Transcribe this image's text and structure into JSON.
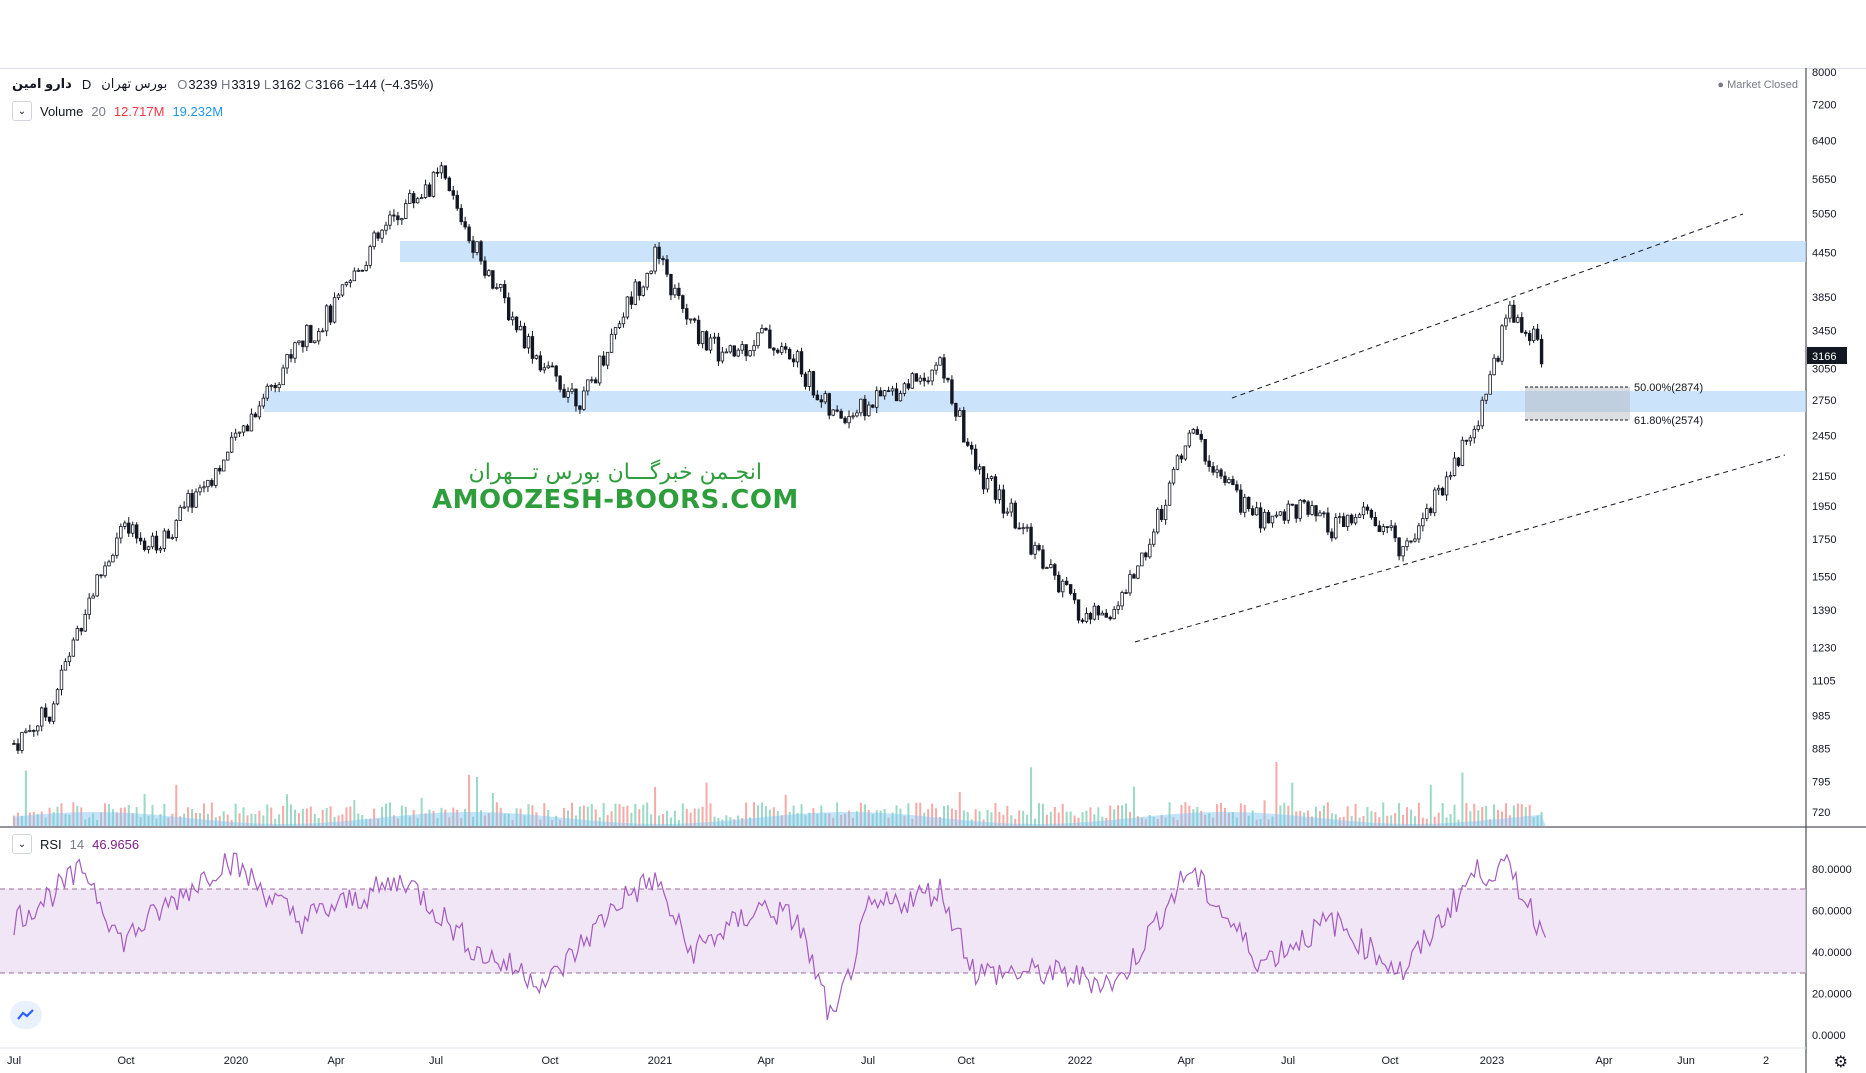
{
  "header": {
    "symbol_name": "دارو امین",
    "interval": "D",
    "exchange": "بورس تهران",
    "open_label": "O",
    "open": "3239",
    "high_label": "H",
    "high": "3319",
    "low_label": "L",
    "low": "3162",
    "close_label": "C",
    "close": "3166",
    "change": "−144 (−4.35%)",
    "market_status": "Market Closed"
  },
  "volume_legend": {
    "name": "Volume",
    "length": "20",
    "value1": "12.717M",
    "value2": "19.232M",
    "value1_color": "#f23645",
    "value2_color": "#2196f3"
  },
  "rsi_legend": {
    "name": "RSI",
    "length": "14",
    "value": "46.9656",
    "value_color": "#7e1f86"
  },
  "watermark": {
    "line1": "انجـمن خبرگـــان بورس تـــهران",
    "line2": "AMOOZESH-BOORS.COM"
  },
  "icons": [
    "chevron-down-icon",
    "tradingview-logo-icon",
    "gear-icon"
  ],
  "chart_data": [
    {
      "type": "candlestick",
      "title": "",
      "price_scale": "log",
      "y_ticks": [
        "8000",
        "7200",
        "6400",
        "5650",
        "5050",
        "4450",
        "3850",
        "3450",
        "3050",
        "2750",
        "2450",
        "2150",
        "1950",
        "1750",
        "1550",
        "1390",
        "1230",
        "1105",
        "985",
        "885",
        "795",
        "720"
      ],
      "x_ticks": [
        "Jul",
        "Oct",
        "2020",
        "Apr",
        "Jul",
        "Oct",
        "2021",
        "Apr",
        "Jul",
        "Oct",
        "2022",
        "Apr",
        "Jul",
        "Oct",
        "2023",
        "Apr",
        "Jun",
        "2"
      ],
      "last_price_label": "3166",
      "close_path_approx": [
        {
          "date": "2019-07",
          "close": 900
        },
        {
          "date": "2019-08",
          "close": 1000
        },
        {
          "date": "2019-09",
          "close": 1400
        },
        {
          "date": "2019-10",
          "close": 1800
        },
        {
          "date": "2019-11",
          "close": 1700
        },
        {
          "date": "2019-12",
          "close": 2000
        },
        {
          "date": "2020-01",
          "close": 2300
        },
        {
          "date": "2020-02",
          "close": 2800
        },
        {
          "date": "2020-03",
          "close": 3300
        },
        {
          "date": "2020-04",
          "close": 3700
        },
        {
          "date": "2020-05",
          "close": 4500
        },
        {
          "date": "2020-06",
          "close": 5200
        },
        {
          "date": "2020-07",
          "close": 5700
        },
        {
          "date": "2020-08",
          "close": 4500
        },
        {
          "date": "2020-09",
          "close": 3600
        },
        {
          "date": "2020-10",
          "close": 3000
        },
        {
          "date": "2020-11",
          "close": 2750
        },
        {
          "date": "2020-12",
          "close": 3600
        },
        {
          "date": "2021-01",
          "close": 4400
        },
        {
          "date": "2021-02",
          "close": 3500
        },
        {
          "date": "2021-03",
          "close": 3150
        },
        {
          "date": "2021-04",
          "close": 3400
        },
        {
          "date": "2021-05",
          "close": 3100
        },
        {
          "date": "2021-06",
          "close": 2600
        },
        {
          "date": "2021-07",
          "close": 2700
        },
        {
          "date": "2021-08",
          "close": 2900
        },
        {
          "date": "2021-09",
          "close": 3100
        },
        {
          "date": "2021-10",
          "close": 2200
        },
        {
          "date": "2021-11",
          "close": 1900
        },
        {
          "date": "2021-12",
          "close": 1600
        },
        {
          "date": "2022-01",
          "close": 1350
        },
        {
          "date": "2022-02",
          "close": 1400
        },
        {
          "date": "2022-03",
          "close": 1800
        },
        {
          "date": "2022-04",
          "close": 2500
        },
        {
          "date": "2022-05",
          "close": 2100
        },
        {
          "date": "2022-06",
          "close": 1850
        },
        {
          "date": "2022-07",
          "close": 1950
        },
        {
          "date": "2022-08",
          "close": 1800
        },
        {
          "date": "2022-09",
          "close": 1900
        },
        {
          "date": "2022-10",
          "close": 1700
        },
        {
          "date": "2022-11",
          "close": 2050
        },
        {
          "date": "2022-12",
          "close": 2500
        },
        {
          "date": "2023-01",
          "close": 3700
        },
        {
          "date": "2023-02",
          "close": 3166
        }
      ],
      "support_resistance_zones": [
        {
          "low": 4300,
          "high": 4550
        },
        {
          "low": 2650,
          "high": 2800
        }
      ],
      "fibonacci": [
        {
          "label": "50.00%(2874)",
          "level": 2874
        },
        {
          "label": "61.80%(2574)",
          "level": 2574
        }
      ],
      "channel_lines": [
        {
          "from": {
            "date": "2022-02",
            "price": 1260
          },
          "to": {
            "date": "2023-05",
            "price": 2300
          }
        },
        {
          "from": {
            "date": "2022-05",
            "price": 2750
          },
          "to": {
            "date": "2023-04",
            "price": 5000
          }
        }
      ]
    },
    {
      "type": "area",
      "title": "Volume 20",
      "note": "volume bars with 20-period moving average overlay"
    },
    {
      "type": "line",
      "title": "RSI 14",
      "y_ticks": [
        "80.0000",
        "60.0000",
        "40.0000",
        "20.0000",
        "0.0000"
      ],
      "bands": {
        "upper": 70,
        "lower": 30
      },
      "last_value": 46.9656,
      "values_approx": [
        {
          "date": "2019-07",
          "rsi": 55
        },
        {
          "date": "2019-09",
          "rsi": 80
        },
        {
          "date": "2019-10",
          "rsi": 45
        },
        {
          "date": "2020-01",
          "rsi": 85
        },
        {
          "date": "2020-03",
          "rsi": 55
        },
        {
          "date": "2020-06",
          "rsi": 75
        },
        {
          "date": "2020-08",
          "rsi": 40
        },
        {
          "date": "2020-10",
          "rsi": 25
        },
        {
          "date": "2020-12",
          "rsi": 65
        },
        {
          "date": "2021-01",
          "rsi": 75
        },
        {
          "date": "2021-02",
          "rsi": 40
        },
        {
          "date": "2021-04",
          "rsi": 62
        },
        {
          "date": "2021-05",
          "rsi": 55
        },
        {
          "date": "2021-06",
          "rsi": 5
        },
        {
          "date": "2021-07",
          "rsi": 60
        },
        {
          "date": "2021-09",
          "rsi": 70
        },
        {
          "date": "2021-10",
          "rsi": 30
        },
        {
          "date": "2021-12",
          "rsi": 30
        },
        {
          "date": "2022-02",
          "rsi": 25
        },
        {
          "date": "2022-04",
          "rsi": 80
        },
        {
          "date": "2022-06",
          "rsi": 35
        },
        {
          "date": "2022-08",
          "rsi": 55
        },
        {
          "date": "2022-10",
          "rsi": 30
        },
        {
          "date": "2022-12",
          "rsi": 78
        },
        {
          "date": "2023-01",
          "rsi": 80
        },
        {
          "date": "2023-02",
          "rsi": 47
        }
      ]
    }
  ]
}
